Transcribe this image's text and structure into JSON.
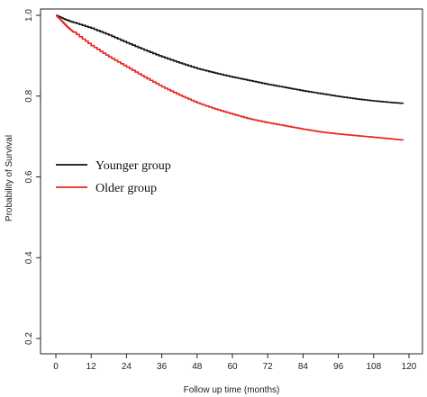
{
  "chart_data": {
    "type": "line",
    "title": "",
    "xlabel": "Follow up time (months)",
    "ylabel": "Probability of Survival",
    "xlim": [
      0,
      120
    ],
    "ylim": [
      0.2,
      1.0
    ],
    "xticks": [
      0,
      12,
      24,
      36,
      48,
      60,
      72,
      84,
      96,
      108,
      120
    ],
    "yticks": [
      0.2,
      0.4,
      0.6,
      0.8,
      1.0
    ],
    "ytick_labels": [
      "0.2",
      "0.4",
      "0.6",
      "0.8",
      "1.0"
    ],
    "grid": false,
    "legend_position": "left-middle",
    "series": [
      {
        "name": "Younger group",
        "color": "#111111",
        "x": [
          0,
          3,
          6,
          12,
          18,
          24,
          30,
          36,
          42,
          48,
          54,
          60,
          66,
          72,
          78,
          84,
          90,
          96,
          102,
          108,
          114,
          118
        ],
        "y": [
          1.0,
          0.99,
          0.982,
          0.968,
          0.951,
          0.932,
          0.914,
          0.897,
          0.882,
          0.868,
          0.857,
          0.847,
          0.838,
          0.829,
          0.821,
          0.813,
          0.806,
          0.799,
          0.793,
          0.788,
          0.784,
          0.782
        ]
      },
      {
        "name": "Older group",
        "color": "#e8251e",
        "x": [
          0,
          2,
          4,
          6,
          12,
          18,
          24,
          30,
          36,
          42,
          48,
          54,
          60,
          66,
          72,
          78,
          84,
          90,
          96,
          102,
          108,
          114,
          118
        ],
        "y": [
          1.0,
          0.985,
          0.97,
          0.958,
          0.925,
          0.897,
          0.872,
          0.847,
          0.823,
          0.802,
          0.783,
          0.768,
          0.755,
          0.743,
          0.734,
          0.726,
          0.718,
          0.711,
          0.706,
          0.702,
          0.698,
          0.694,
          0.691
        ]
      }
    ]
  }
}
